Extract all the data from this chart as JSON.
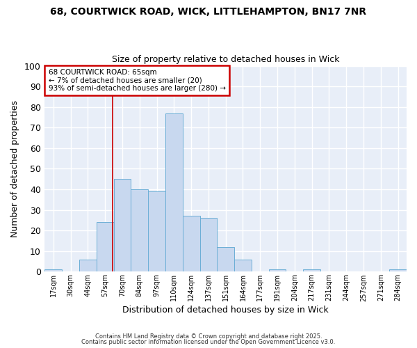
{
  "title1": "68, COURTWICK ROAD, WICK, LITTLEHAMPTON, BN17 7NR",
  "title2": "Size of property relative to detached houses in Wick",
  "xlabel": "Distribution of detached houses by size in Wick",
  "ylabel": "Number of detached properties",
  "bar_labels": [
    "17sqm",
    "30sqm",
    "44sqm",
    "57sqm",
    "70sqm",
    "84sqm",
    "97sqm",
    "110sqm",
    "124sqm",
    "137sqm",
    "151sqm",
    "164sqm",
    "177sqm",
    "191sqm",
    "204sqm",
    "217sqm",
    "231sqm",
    "244sqm",
    "257sqm",
    "271sqm",
    "284sqm"
  ],
  "bar_heights": [
    1,
    0,
    6,
    24,
    45,
    40,
    39,
    77,
    27,
    26,
    12,
    6,
    0,
    1,
    0,
    1,
    0,
    0,
    0,
    0,
    1
  ],
  "bar_color": "#c8d8ef",
  "bar_edge_color": "#6baed6",
  "bg_color": "#ffffff",
  "plot_bg_color": "#e8eef8",
  "grid_color": "#ffffff",
  "annotation_title": "68 COURTWICK ROAD: 65sqm",
  "annotation_line1": "← 7% of detached houses are smaller (20)",
  "annotation_line2": "93% of semi-detached houses are larger (280) →",
  "annotation_box_color": "#ffffff",
  "annotation_box_edge": "#cc0000",
  "vline_color": "#cc0000",
  "vline_x": 3.45,
  "ylim": [
    0,
    100
  ],
  "yticks": [
    0,
    10,
    20,
    30,
    40,
    50,
    60,
    70,
    80,
    90,
    100
  ],
  "footnote1": "Contains HM Land Registry data © Crown copyright and database right 2025.",
  "footnote2": "Contains public sector information licensed under the Open Government Licence v3.0."
}
